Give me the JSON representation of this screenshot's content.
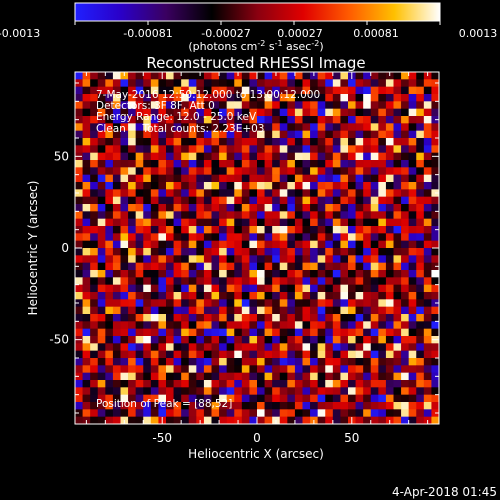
{
  "colorbar": {
    "ticks": [
      "-0.0013",
      "-0.00081",
      "-0.00027",
      "0.00027",
      "0.00081",
      "0.0013"
    ],
    "units_prefix": "(photons cm",
    "units_sup1": "-2",
    "units_mid1": " s",
    "units_sup2": "-1",
    "units_mid2": " asec",
    "units_sup3": "-2",
    "units_suffix": ")",
    "stops": [
      "#2020ff",
      "#2a00c8",
      "#3a0060",
      "#000000",
      "#8a0010",
      "#e00000",
      "#ff5a00",
      "#ffc000",
      "#ffffff"
    ]
  },
  "image_title": "Reconstructed RHESSI Image",
  "info": {
    "line1": "7-May-2016 12:50:12.000 to 13:00:12.000",
    "line2": "Detectors: 3F 8F, Att 0",
    "line3": "Energy Range: 12.0 - 25.0 keV",
    "line4": "Clean     Total counts: 2.23E+03",
    "peak": "Position of Peak = [88,52]"
  },
  "footer_timestamp": "4-Apr-2018 01:45",
  "chart_data": {
    "type": "heatmap",
    "title": "Reconstructed RHESSI Image",
    "xlabel": "Heliocentric X (arcsec)",
    "ylabel": "Heliocentric Y (arcsec)",
    "xlim": [
      -96,
      96
    ],
    "ylim": [
      -96,
      96
    ],
    "x_ticks": [
      -50,
      0,
      50
    ],
    "y_ticks": [
      50,
      0,
      -50
    ],
    "colorscale_range": [
      -0.0013,
      0.0013
    ],
    "units": "photons cm^-2 s^-1 asec^-2",
    "grid": false,
    "pixel_size_arcsec": 4,
    "grid_cols": 48,
    "grid_rows": 48,
    "peak_position": [
      88,
      52
    ]
  }
}
